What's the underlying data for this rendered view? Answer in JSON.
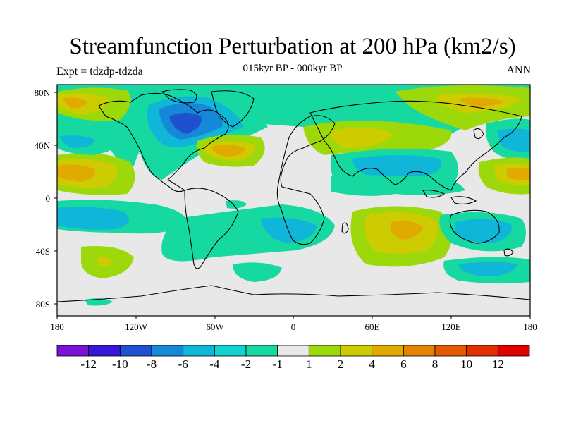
{
  "header": {
    "title": "Streamfunction Perturbation at 200 hPa (km2/s)",
    "subtitle": "015kyr BP - 000kyr BP",
    "experiment": "Expt = tdzdp-tdzda",
    "season": "ANN"
  },
  "axes": {
    "x_ticks": [
      "180",
      "120W",
      "60W",
      "0",
      "60E",
      "120E",
      "180"
    ],
    "y_ticks": [
      "80N",
      "40N",
      "0",
      "40S",
      "80S"
    ]
  },
  "colorbar": {
    "labels": [
      "-12",
      "-10",
      "-8",
      "-6",
      "-4",
      "-2",
      "-1",
      "1",
      "2",
      "4",
      "6",
      "8",
      "10",
      "12"
    ],
    "colors": [
      "#7a12d6",
      "#3a16d6",
      "#1f50d0",
      "#1589d8",
      "#0fb6d8",
      "#12d1d0",
      "#15d9a0",
      "#e8e8e8",
      "#9dd80a",
      "#cccc00",
      "#e0aa00",
      "#e58200",
      "#e45a00",
      "#e03000",
      "#e00000"
    ]
  },
  "palette": {
    "neg_strong": "#1f50d0",
    "neg_mid": "#0fb6d8",
    "neg_weak": "#15d9a0",
    "neutral": "#e8e8e8",
    "pos_weak": "#9dd80a",
    "pos_mid": "#cccc00",
    "pos_strong": "#e0aa00"
  }
}
